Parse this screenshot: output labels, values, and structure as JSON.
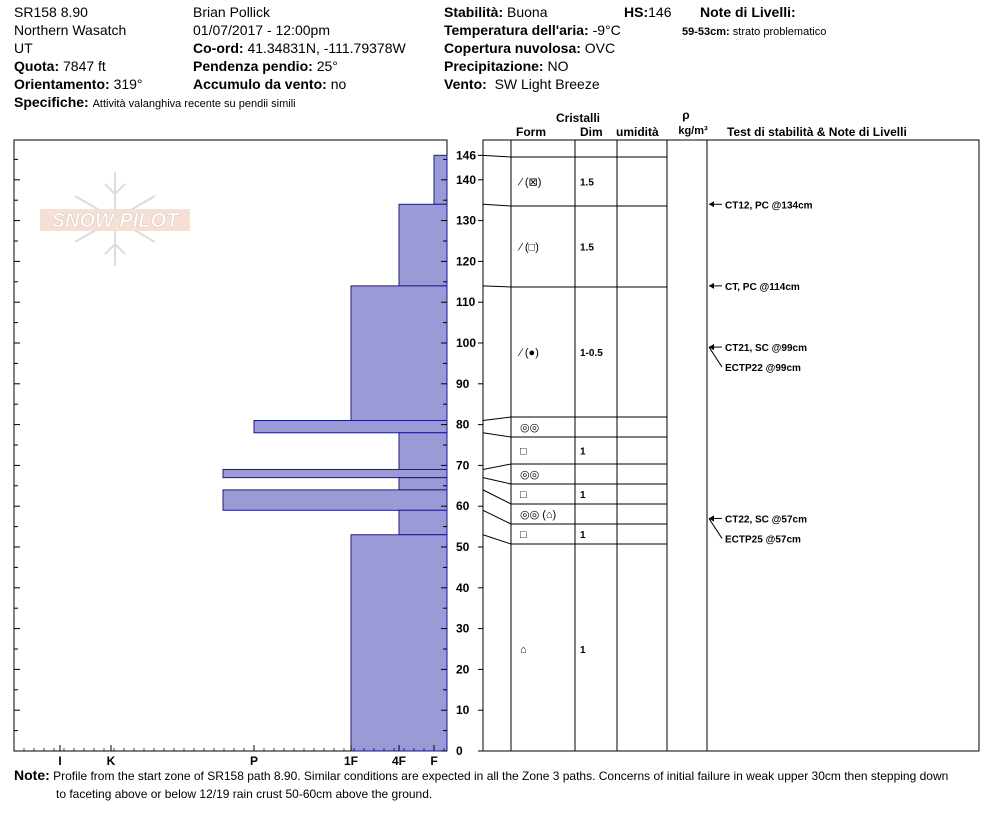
{
  "header": {
    "id": "SR158 8.90",
    "region": "Northern Wasatch",
    "state": "UT",
    "elevation_label": "Quota:",
    "elevation": "7847 ft",
    "aspect_label": "Orientamento:",
    "aspect": "319°",
    "specifics_label": "Specifiche:",
    "specifics": "Attività valanghiva recente su pendii simili",
    "observer": "Brian Pollick",
    "datetime": "01/07/2017 - 12:00pm",
    "coord_label": "Co-ord:",
    "coord": "41.34831N, -111.79378W",
    "slope_label": "Pendenza pendio:",
    "slope": "25°",
    "wind_load_label": "Accumulo da vento:",
    "wind_load": "no",
    "stability_label": "Stabilità:",
    "stability": "Buona",
    "hs_label": "HS:",
    "hs": "146",
    "air_temp_label": "Temperatura dell'aria:",
    "air_temp": "-9°C",
    "cloud_label": "Copertura nuvolosa:",
    "cloud": "OVC",
    "precip_label": "Precipitazione:",
    "precip": "NO",
    "wind_label": "Vento:",
    "wind": "SW Light Breeze",
    "layer_notes_label": "Note di Livelli:",
    "layer_note_depth": "59-53cm:",
    "layer_note_text": "strato problematico"
  },
  "columns": {
    "crystals": "Cristalli",
    "form": "Form",
    "size": "Dim",
    "moisture": "umidità",
    "rho": "ρ",
    "density_unit": "kg/m³",
    "tests": "Test di stabilità & Note di Livelli"
  },
  "logo_text": "SNOW PILOT",
  "colors": {
    "hardness_fill": "#9b9ad7",
    "hardness_stroke": "#1a1a8c"
  },
  "chart_data": {
    "type": "bar",
    "title": "",
    "xlabel": "",
    "ylabel": "",
    "ylim": [
      0,
      146
    ],
    "y_ticks": [
      0,
      10,
      20,
      30,
      40,
      50,
      60,
      70,
      80,
      90,
      100,
      110,
      120,
      130,
      140,
      146
    ],
    "x_categories": [
      "F",
      "4F",
      "1F",
      "P",
      "K",
      "I"
    ],
    "x_tick_labels": [
      "I",
      "K",
      "P",
      "1F",
      "4F",
      "F"
    ],
    "hardness_layers": [
      {
        "top": 146,
        "bottom": 134,
        "hardness": "F"
      },
      {
        "top": 134,
        "bottom": 114,
        "hardness": "4F"
      },
      {
        "top": 114,
        "bottom": 81,
        "hardness": "1F"
      },
      {
        "top": 81,
        "bottom": 78,
        "hardness": "P"
      },
      {
        "top": 78,
        "bottom": 69,
        "hardness": "4F"
      },
      {
        "top": 69,
        "bottom": 67,
        "hardness": "P+"
      },
      {
        "top": 67,
        "bottom": 64,
        "hardness": "4F"
      },
      {
        "top": 64,
        "bottom": 59,
        "hardness": "P+"
      },
      {
        "top": 59,
        "bottom": 53,
        "hardness": "4F"
      },
      {
        "top": 53,
        "bottom": 0,
        "hardness": "1F"
      }
    ],
    "layer_boundaries": [
      146,
      134,
      114,
      82,
      77,
      71,
      65,
      60,
      55,
      51,
      0
    ],
    "crystal_layers": [
      {
        "top": 146,
        "bottom": 134,
        "form": "⁄ (⊠)",
        "size": "1.5"
      },
      {
        "top": 134,
        "bottom": 114,
        "form": "⁄ (□)",
        "size": "1.5"
      },
      {
        "top": 114,
        "bottom": 82,
        "form": "⁄ (●)",
        "size": "1-0.5"
      },
      {
        "top": 82,
        "bottom": 77,
        "form": "◎◎",
        "size": ""
      },
      {
        "top": 77,
        "bottom": 71,
        "form": "□",
        "size": "1"
      },
      {
        "top": 71,
        "bottom": 65,
        "form": "◎◎",
        "size": ""
      },
      {
        "top": 65,
        "bottom": 60,
        "form": "□",
        "size": "1"
      },
      {
        "top": 60,
        "bottom": 55,
        "form": "◎◎ (⌂)",
        "size": ""
      },
      {
        "top": 55,
        "bottom": 51,
        "form": "□",
        "size": "1"
      },
      {
        "top": 51,
        "bottom": 0,
        "form": "⌂",
        "size": "1"
      }
    ],
    "stability_tests": [
      {
        "depth": 134,
        "label": "CT12, PC @134cm"
      },
      {
        "depth": 114,
        "label": "CT, PC @114cm"
      },
      {
        "depth": 99,
        "label": "CT21, SC @99cm"
      },
      {
        "depth": 99,
        "label": "ECTP22 @99cm"
      },
      {
        "depth": 57,
        "label": "CT22, SC @57cm"
      },
      {
        "depth": 57,
        "label": "ECTP25 @57cm"
      }
    ]
  },
  "footer": {
    "note_label": "Note:",
    "note_line1": "Profile from the start zone of SR158 path 8.90.  Similar conditions are expected in all the Zone 3 paths.  Concerns of initial failure in weak upper 30cm then stepping down",
    "note_line2": "to faceting above or below 12/19 rain crust 50-60cm above the ground."
  }
}
